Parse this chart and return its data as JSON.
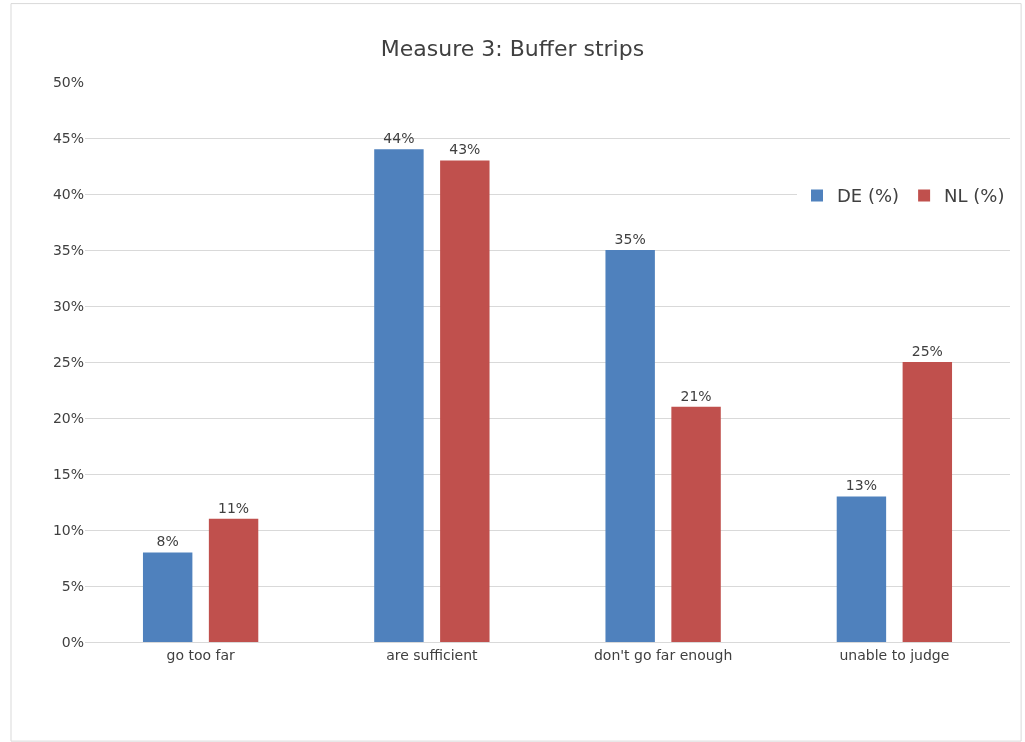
{
  "chart_data": {
    "type": "bar",
    "title": "Measure 3: Buffer strips",
    "categories": [
      "go too far",
      "are sufficient",
      "don't go far enough",
      "unable to judge"
    ],
    "series": [
      {
        "name": "DE (%)",
        "color": "#4f81bd",
        "values": [
          8,
          44,
          35,
          13
        ],
        "value_labels": [
          "8%",
          "44%",
          "35%",
          "13%"
        ]
      },
      {
        "name": "NL (%)",
        "color": "#c0504d",
        "values": [
          11,
          43,
          21,
          25
        ],
        "value_labels": [
          "11%",
          "43%",
          "21%",
          "25%"
        ]
      }
    ],
    "ylim": [
      0,
      50
    ],
    "yticks": [
      {
        "value": 0,
        "label": "0%"
      },
      {
        "value": 5,
        "label": "5%"
      },
      {
        "value": 10,
        "label": "10%"
      },
      {
        "value": 15,
        "label": "15%"
      },
      {
        "value": 20,
        "label": "20%"
      },
      {
        "value": 25,
        "label": "25%"
      },
      {
        "value": 30,
        "label": "30%"
      },
      {
        "value": 35,
        "label": "35%"
      },
      {
        "value": 40,
        "label": "40%"
      },
      {
        "value": 45,
        "label": "45%"
      },
      {
        "value": 50,
        "label": "50%"
      }
    ],
    "grid": "y",
    "legend": "top right"
  }
}
